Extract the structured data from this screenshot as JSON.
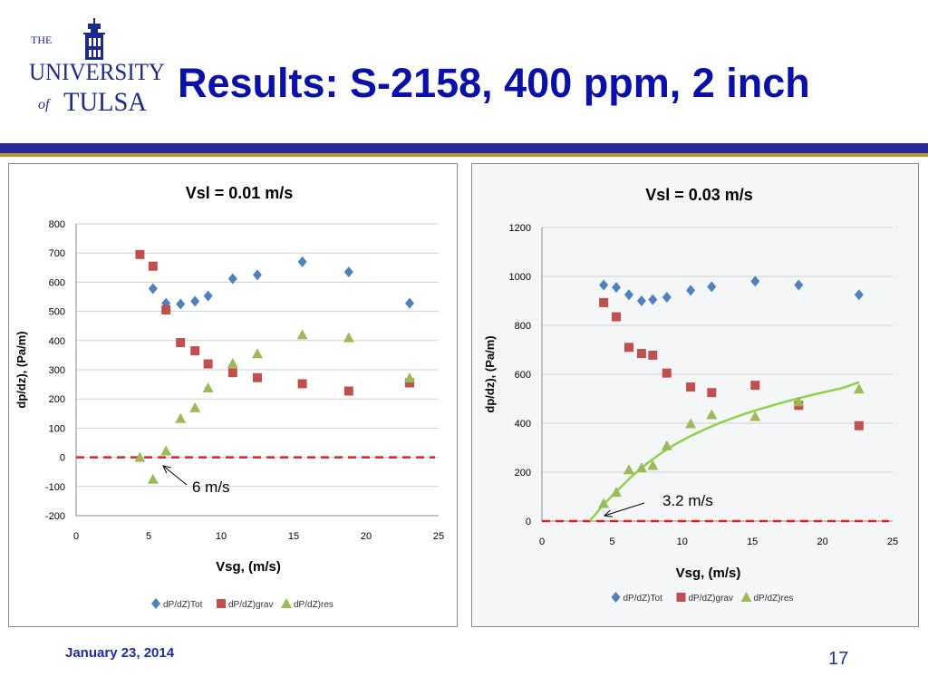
{
  "slide": {
    "title": "Results: S-2158, 400 ppm, 2 inch",
    "date": "January 23, 2014",
    "page_number": "17"
  },
  "logo": {
    "line1": "THE",
    "line2": "UNIVERSITY",
    "line3_of": "of",
    "line3": "TULSA"
  },
  "colors": {
    "title_blue": "#0a10a8",
    "bar_blue": "#2a2a9c",
    "bar_gold": "#b8962e",
    "series_tot": "#4f81bd",
    "series_grav": "#c0504d",
    "series_res": "#9bbb59",
    "zero_line": "#e02020",
    "trend_line": "#8fd24a"
  },
  "chart_data": [
    {
      "type": "scatter",
      "title": "Vsl = 0.01 m/s",
      "xlabel": "Vsg, (m/s)",
      "ylabel": "dp/dz), (Pa/m)",
      "xlim": [
        0,
        25
      ],
      "ylim": [
        -200,
        800
      ],
      "xticks": [
        0,
        5,
        10,
        15,
        20,
        25
      ],
      "yticks": [
        -200,
        -100,
        0,
        100,
        200,
        300,
        400,
        500,
        600,
        700,
        800
      ],
      "grid": true,
      "legend": "bottom",
      "series": [
        {
          "name": "dP/dZ)Tot",
          "marker": "diamond",
          "x": [
            5.3,
            6.2,
            7.2,
            8.2,
            9.1,
            10.8,
            12.5,
            15.6,
            18.8,
            23
          ],
          "y": [
            578,
            528,
            525,
            535,
            553,
            612,
            625,
            670,
            635,
            528
          ]
        },
        {
          "name": "dP/dZ)grav",
          "marker": "square",
          "x": [
            4.4,
            5.3,
            6.2,
            7.2,
            8.2,
            9.1,
            10.8,
            12.5,
            15.6,
            18.8,
            23
          ],
          "y": [
            695,
            655,
            505,
            393,
            365,
            320,
            290,
            273,
            252,
            227,
            255
          ]
        },
        {
          "name": "dP/dZ)res",
          "marker": "triangle",
          "x": [
            4.4,
            5.3,
            6.2,
            7.2,
            8.2,
            9.1,
            10.8,
            12.5,
            15.6,
            18.8,
            23
          ],
          "y": [
            0,
            -75,
            22,
            133,
            170,
            238,
            322,
            355,
            420,
            410,
            272
          ]
        }
      ],
      "reference_line": {
        "y": 0,
        "style": "dashed"
      },
      "annotation": {
        "text": "6 m/s",
        "points_to_x": 6
      }
    },
    {
      "type": "scatter",
      "title": "Vsl = 0.03 m/s",
      "xlabel": "Vsg, (m/s)",
      "ylabel": "dp/dz), (Pa/m)",
      "xlim": [
        0,
        25
      ],
      "ylim": [
        0,
        1200
      ],
      "xticks": [
        0,
        5,
        10,
        15,
        20,
        25
      ],
      "yticks": [
        0,
        200,
        400,
        600,
        800,
        1000,
        1200
      ],
      "grid": true,
      "legend": "bottom",
      "series": [
        {
          "name": "dP/dZ)Tot",
          "marker": "diamond",
          "x": [
            4.4,
            5.3,
            6.2,
            7.1,
            7.9,
            8.9,
            10.6,
            12.1,
            15.2,
            18.3,
            22.6
          ],
          "y": [
            965,
            955,
            925,
            900,
            905,
            915,
            943,
            958,
            980,
            965,
            925
          ]
        },
        {
          "name": "dP/dZ)grav",
          "marker": "square",
          "x": [
            4.4,
            5.3,
            6.2,
            7.1,
            7.9,
            8.9,
            10.6,
            12.1,
            15.2,
            18.3,
            22.6
          ],
          "y": [
            893,
            835,
            710,
            685,
            678,
            605,
            548,
            525,
            555,
            473,
            390
          ]
        },
        {
          "name": "dP/dZ)res",
          "marker": "triangle",
          "x": [
            4.4,
            5.3,
            6.2,
            7.1,
            7.9,
            8.9,
            10.6,
            12.1,
            15.2,
            18.3,
            22.6
          ],
          "y": [
            72,
            118,
            210,
            218,
            228,
            308,
            398,
            435,
            428,
            488,
            540
          ]
        }
      ],
      "trend_line": {
        "x": [
          3.4,
          4.4,
          5.5,
          6.5,
          7.5,
          8.5,
          9.5,
          10.5,
          11.5,
          12.5,
          13.5,
          14.5,
          15.5,
          16.5,
          17.5,
          18.5,
          19.5,
          20.5,
          21.5,
          22.6
        ],
        "y": [
          0,
          68,
          132,
          188,
          236,
          278,
          314,
          345,
          372,
          397,
          419,
          439,
          457,
          474,
          490,
          505,
          519,
          532,
          545,
          568
        ]
      },
      "reference_line": {
        "y": 0,
        "style": "dashed"
      },
      "annotation": {
        "text": "3.2 m/s",
        "points_to_x": 4.4
      }
    }
  ]
}
